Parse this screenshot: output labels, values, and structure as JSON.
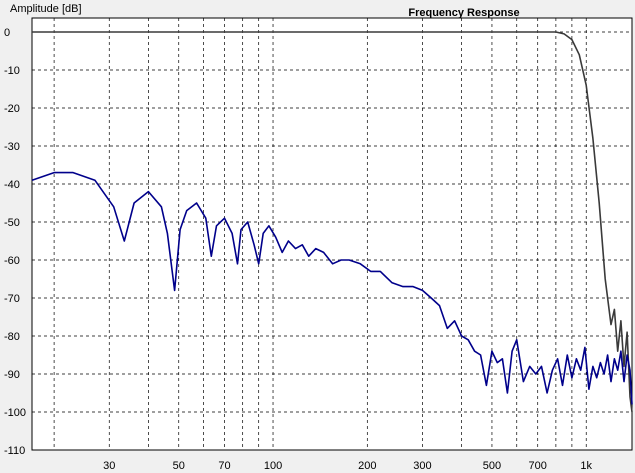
{
  "chart_data": {
    "type": "line",
    "title": "Frequency Response",
    "ylabel": "Amplitude [dB]",
    "xlabel": "",
    "x_scale": "log",
    "xlim": [
      17,
      1400
    ],
    "ylim": [
      -110,
      0
    ],
    "grid": true,
    "x_tick_labels": [
      {
        "value": 30,
        "label": "30"
      },
      {
        "value": 50,
        "label": "50"
      },
      {
        "value": 70,
        "label": "70"
      },
      {
        "value": 100,
        "label": "100"
      },
      {
        "value": 200,
        "label": "200"
      },
      {
        "value": 300,
        "label": "300"
      },
      {
        "value": 500,
        "label": "500"
      },
      {
        "value": 700,
        "label": "700"
      },
      {
        "value": 1000,
        "label": "1k"
      }
    ],
    "x_minor_grid": [
      20,
      40,
      60,
      80,
      90,
      400,
      600,
      800,
      900
    ],
    "y_ticks": [
      {
        "value": 0,
        "label": "0"
      },
      {
        "value": -10,
        "label": "-10"
      },
      {
        "value": -20,
        "label": "-20"
      },
      {
        "value": -30,
        "label": "-30"
      },
      {
        "value": -40,
        "label": "-40"
      },
      {
        "value": -50,
        "label": "-50"
      },
      {
        "value": -60,
        "label": "-60"
      },
      {
        "value": -70,
        "label": "-70"
      },
      {
        "value": -80,
        "label": "-80"
      },
      {
        "value": -90,
        "label": "-90"
      },
      {
        "value": -100,
        "label": "-100"
      },
      {
        "value": -110,
        "label": "-110"
      }
    ],
    "series": [
      {
        "color": "#3a3a3a",
        "x": [
          17,
          100,
          500,
          800,
          850,
          900,
          950,
          1000,
          1050,
          1100,
          1150,
          1200,
          1230,
          1260,
          1290,
          1320,
          1350,
          1380,
          1400
        ],
        "y": [
          0,
          0,
          0,
          0,
          -0.5,
          -2,
          -6,
          -14,
          -28,
          -45,
          -65,
          -77,
          -73,
          -84,
          -76,
          -88,
          -79,
          -96,
          -100
        ]
      },
      {
        "color": "#00008b",
        "x": [
          17,
          20,
          23,
          27,
          31,
          33.5,
          36,
          40,
          44,
          46,
          48.5,
          50.5,
          53,
          57,
          61,
          63.5,
          66,
          70,
          74,
          77,
          79,
          83,
          87,
          90,
          93,
          97,
          102,
          107,
          112,
          118,
          124,
          130,
          137,
          145,
          155,
          165,
          175,
          190,
          205,
          220,
          240,
          260,
          280,
          300,
          320,
          340,
          360,
          380,
          400,
          420,
          440,
          460,
          480,
          500,
          520,
          540,
          560,
          580,
          600,
          630,
          660,
          690,
          720,
          750,
          780,
          810,
          840,
          870,
          900,
          930,
          960,
          990,
          1020,
          1050,
          1080,
          1110,
          1140,
          1170,
          1200,
          1230,
          1260,
          1290,
          1320,
          1350,
          1380,
          1400
        ],
        "y": [
          -39,
          -37,
          -37,
          -39,
          -46,
          -55,
          -45,
          -42,
          -46,
          -53,
          -68,
          -52,
          -47,
          -45,
          -49,
          -59,
          -51,
          -49,
          -53,
          -61,
          -52,
          -50,
          -56,
          -61,
          -53,
          -51,
          -54,
          -58,
          -55,
          -57,
          -56,
          -59,
          -57,
          -58,
          -61,
          -60,
          -60,
          -61,
          -63,
          -63,
          -66,
          -67,
          -67,
          -68,
          -70,
          -72,
          -78,
          -76,
          -80,
          -81,
          -84,
          -85,
          -93,
          -84,
          -87,
          -86,
          -95,
          -84,
          -81,
          -92,
          -88,
          -90,
          -88,
          -95,
          -89,
          -86,
          -93,
          -85,
          -91,
          -86,
          -89,
          -83,
          -94,
          -88,
          -91,
          -87,
          -90,
          -85,
          -92,
          -86,
          -89,
          -84,
          -92,
          -85,
          -89,
          -98
        ]
      }
    ]
  }
}
